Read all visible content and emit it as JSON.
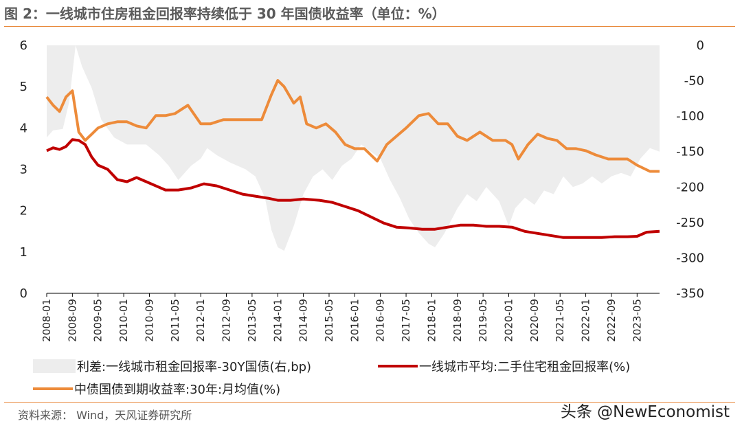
{
  "title": "图 2：一线城市住房租金回报率持续低于 30 年国债收益率（单位：%）",
  "source": "资料来源： Wind，天风证券研究所",
  "watermark": "头条 @NewEconomist",
  "colors": {
    "accent": "#e8883a",
    "spread": "#ededed",
    "rent": "#c00000",
    "bond": "#ed8b3a"
  },
  "chart_data": {
    "type": "line",
    "y_left": {
      "min": 0,
      "max": 6,
      "ticks": [
        0,
        1,
        2,
        3,
        4,
        5,
        6
      ],
      "tick_labels": [
        "0",
        "1",
        "2",
        "3",
        "4",
        "5",
        "6"
      ]
    },
    "y_right": {
      "min": -350,
      "max": 0,
      "ticks": [
        0,
        -50,
        -100,
        -150,
        -200,
        -250,
        -300,
        -350
      ],
      "tick_labels": [
        "0",
        "-50",
        "-100",
        "-150",
        "-200",
        "-250",
        "-300",
        "-350"
      ]
    },
    "x_range": [
      "2008-01",
      "2023-12"
    ],
    "x_ticks": [
      "2008-01",
      "2008-09",
      "2009-05",
      "2010-01",
      "2010-09",
      "2011-05",
      "2012-01",
      "2012-09",
      "2013-05",
      "2014-01",
      "2014-09",
      "2015-05",
      "2016-01",
      "2016-09",
      "2017-05",
      "2018-01",
      "2018-09",
      "2019-05",
      "2020-01",
      "2020-09",
      "2021-05",
      "2022-01",
      "2022-09",
      "2023-05"
    ],
    "legend": [
      {
        "name": "利差:一线城市租金回报率-30Y国债(右,bp)",
        "swatch": "area"
      },
      {
        "name": "一线城市平均:二手住宅租金回报率(%)",
        "swatch": "line"
      },
      {
        "name": "中债国债到期收益率:30年:月均值(%)",
        "swatch": "line"
      }
    ],
    "series": [
      {
        "name": "利差:一线城市租金回报率-30Y国债(右,bp)",
        "axis": "right",
        "kind": "area",
        "points": [
          [
            "2008-01",
            -130
          ],
          [
            "2008-03",
            -120
          ],
          [
            "2008-06",
            -118
          ],
          [
            "2008-08",
            -80
          ],
          [
            "2008-10",
            0
          ],
          [
            "2008-12",
            -30
          ],
          [
            "2009-03",
            -60
          ],
          [
            "2009-06",
            -105
          ],
          [
            "2009-10",
            -130
          ],
          [
            "2010-02",
            -140
          ],
          [
            "2010-08",
            -140
          ],
          [
            "2010-12",
            -155
          ],
          [
            "2011-03",
            -170
          ],
          [
            "2011-06",
            -190
          ],
          [
            "2011-10",
            -170
          ],
          [
            "2012-01",
            -160
          ],
          [
            "2012-03",
            -145
          ],
          [
            "2012-06",
            -155
          ],
          [
            "2012-10",
            -165
          ],
          [
            "2013-03",
            -175
          ],
          [
            "2013-06",
            -185
          ],
          [
            "2013-09",
            -215
          ],
          [
            "2013-11",
            -260
          ],
          [
            "2014-01",
            -285
          ],
          [
            "2014-03",
            -290
          ],
          [
            "2014-06",
            -255
          ],
          [
            "2014-09",
            -210
          ],
          [
            "2014-12",
            -185
          ],
          [
            "2015-03",
            -175
          ],
          [
            "2015-06",
            -190
          ],
          [
            "2015-09",
            -170
          ],
          [
            "2015-12",
            -160
          ],
          [
            "2016-03",
            -140
          ],
          [
            "2016-06",
            -150
          ],
          [
            "2016-09",
            -160
          ],
          [
            "2016-12",
            -190
          ],
          [
            "2017-03",
            -215
          ],
          [
            "2017-06",
            -245
          ],
          [
            "2017-09",
            -265
          ],
          [
            "2017-12",
            -280
          ],
          [
            "2018-02",
            -285
          ],
          [
            "2018-05",
            -265
          ],
          [
            "2018-09",
            -230
          ],
          [
            "2018-12",
            -210
          ],
          [
            "2019-03",
            -220
          ],
          [
            "2019-06",
            -200
          ],
          [
            "2019-10",
            -220
          ],
          [
            "2020-01",
            -255
          ],
          [
            "2020-03",
            -230
          ],
          [
            "2020-06",
            -215
          ],
          [
            "2020-09",
            -225
          ],
          [
            "2020-12",
            -205
          ],
          [
            "2021-03",
            -210
          ],
          [
            "2021-06",
            -185
          ],
          [
            "2021-09",
            -200
          ],
          [
            "2021-12",
            -195
          ],
          [
            "2022-03",
            -185
          ],
          [
            "2022-06",
            -195
          ],
          [
            "2022-09",
            -185
          ],
          [
            "2022-12",
            -180
          ],
          [
            "2023-03",
            -185
          ],
          [
            "2023-06",
            -160
          ],
          [
            "2023-09",
            -145
          ],
          [
            "2023-12",
            -150
          ]
        ]
      },
      {
        "name": "一线城市平均:二手住宅租金回报率(%)",
        "axis": "left",
        "kind": "line",
        "points": [
          [
            "2008-01",
            3.45
          ],
          [
            "2008-03",
            3.52
          ],
          [
            "2008-05",
            3.48
          ],
          [
            "2008-07",
            3.55
          ],
          [
            "2008-09",
            3.72
          ],
          [
            "2008-11",
            3.7
          ],
          [
            "2009-01",
            3.6
          ],
          [
            "2009-03",
            3.3
          ],
          [
            "2009-05",
            3.1
          ],
          [
            "2009-08",
            3.0
          ],
          [
            "2009-11",
            2.75
          ],
          [
            "2010-02",
            2.7
          ],
          [
            "2010-05",
            2.8
          ],
          [
            "2010-08",
            2.7
          ],
          [
            "2010-11",
            2.6
          ],
          [
            "2011-02",
            2.5
          ],
          [
            "2011-06",
            2.5
          ],
          [
            "2011-10",
            2.55
          ],
          [
            "2012-02",
            2.65
          ],
          [
            "2012-06",
            2.6
          ],
          [
            "2012-10",
            2.5
          ],
          [
            "2013-02",
            2.4
          ],
          [
            "2013-06",
            2.35
          ],
          [
            "2013-10",
            2.3
          ],
          [
            "2014-01",
            2.25
          ],
          [
            "2014-05",
            2.25
          ],
          [
            "2014-09",
            2.28
          ],
          [
            "2015-02",
            2.25
          ],
          [
            "2015-06",
            2.2
          ],
          [
            "2015-10",
            2.1
          ],
          [
            "2016-02",
            2.0
          ],
          [
            "2016-06",
            1.85
          ],
          [
            "2016-10",
            1.7
          ],
          [
            "2017-02",
            1.6
          ],
          [
            "2017-06",
            1.58
          ],
          [
            "2017-10",
            1.55
          ],
          [
            "2018-02",
            1.55
          ],
          [
            "2018-06",
            1.6
          ],
          [
            "2018-10",
            1.65
          ],
          [
            "2019-02",
            1.65
          ],
          [
            "2019-06",
            1.62
          ],
          [
            "2019-10",
            1.62
          ],
          [
            "2020-02",
            1.6
          ],
          [
            "2020-06",
            1.5
          ],
          [
            "2020-10",
            1.45
          ],
          [
            "2021-02",
            1.4
          ],
          [
            "2021-06",
            1.35
          ],
          [
            "2021-10",
            1.35
          ],
          [
            "2022-02",
            1.35
          ],
          [
            "2022-06",
            1.35
          ],
          [
            "2022-10",
            1.37
          ],
          [
            "2023-02",
            1.37
          ],
          [
            "2023-05",
            1.38
          ],
          [
            "2023-08",
            1.48
          ],
          [
            "2023-12",
            1.5
          ]
        ]
      },
      {
        "name": "中债国债到期收益率:30年:月均值(%)",
        "axis": "left",
        "kind": "line",
        "points": [
          [
            "2008-01",
            4.75
          ],
          [
            "2008-03",
            4.55
          ],
          [
            "2008-05",
            4.4
          ],
          [
            "2008-07",
            4.75
          ],
          [
            "2008-09",
            4.9
          ],
          [
            "2008-11",
            3.9
          ],
          [
            "2009-01",
            3.7
          ],
          [
            "2009-03",
            3.85
          ],
          [
            "2009-05",
            4.0
          ],
          [
            "2009-08",
            4.1
          ],
          [
            "2009-11",
            4.15
          ],
          [
            "2010-02",
            4.15
          ],
          [
            "2010-05",
            4.05
          ],
          [
            "2010-08",
            4.0
          ],
          [
            "2010-11",
            4.3
          ],
          [
            "2011-02",
            4.3
          ],
          [
            "2011-05",
            4.35
          ],
          [
            "2011-09",
            4.55
          ],
          [
            "2012-01",
            4.1
          ],
          [
            "2012-04",
            4.1
          ],
          [
            "2012-08",
            4.2
          ],
          [
            "2012-12",
            4.2
          ],
          [
            "2013-04",
            4.2
          ],
          [
            "2013-08",
            4.2
          ],
          [
            "2013-11",
            4.8
          ],
          [
            "2014-01",
            5.15
          ],
          [
            "2014-03",
            5.0
          ],
          [
            "2014-06",
            4.6
          ],
          [
            "2014-08",
            4.75
          ],
          [
            "2014-10",
            4.1
          ],
          [
            "2015-01",
            4.0
          ],
          [
            "2015-04",
            4.1
          ],
          [
            "2015-07",
            3.9
          ],
          [
            "2015-10",
            3.6
          ],
          [
            "2016-01",
            3.5
          ],
          [
            "2016-04",
            3.5
          ],
          [
            "2016-08",
            3.2
          ],
          [
            "2016-11",
            3.6
          ],
          [
            "2017-02",
            3.8
          ],
          [
            "2017-05",
            4.0
          ],
          [
            "2017-09",
            4.3
          ],
          [
            "2017-12",
            4.35
          ],
          [
            "2018-03",
            4.1
          ],
          [
            "2018-06",
            4.1
          ],
          [
            "2018-09",
            3.8
          ],
          [
            "2018-12",
            3.7
          ],
          [
            "2019-04",
            3.9
          ],
          [
            "2019-08",
            3.7
          ],
          [
            "2019-12",
            3.7
          ],
          [
            "2020-02",
            3.6
          ],
          [
            "2020-04",
            3.25
          ],
          [
            "2020-07",
            3.6
          ],
          [
            "2020-10",
            3.85
          ],
          [
            "2021-01",
            3.75
          ],
          [
            "2021-04",
            3.7
          ],
          [
            "2021-07",
            3.5
          ],
          [
            "2021-10",
            3.5
          ],
          [
            "2022-01",
            3.45
          ],
          [
            "2022-04",
            3.35
          ],
          [
            "2022-08",
            3.25
          ],
          [
            "2022-11",
            3.25
          ],
          [
            "2023-02",
            3.25
          ],
          [
            "2023-05",
            3.1
          ],
          [
            "2023-09",
            2.95
          ],
          [
            "2023-12",
            2.95
          ]
        ]
      }
    ]
  }
}
